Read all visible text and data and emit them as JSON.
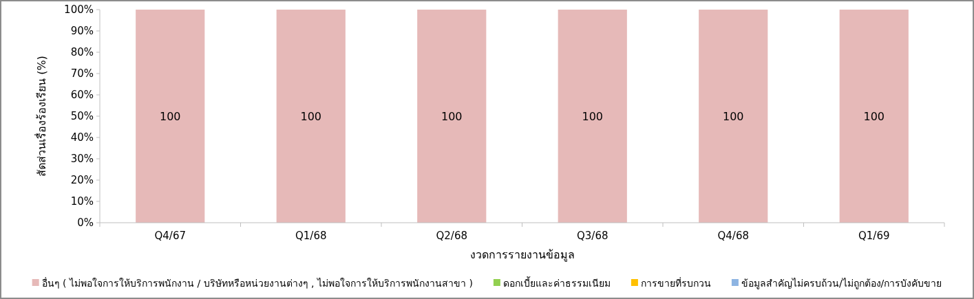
{
  "chart_data": {
    "type": "bar",
    "stacked": true,
    "xlabel": "งวดการรายงานข้อมูล",
    "ylabel": "สัดส่วนเรื่องร้องเรียน (%)",
    "categories": [
      "Q4/67",
      "Q1/68",
      "Q2/68",
      "Q3/68",
      "Q4/68",
      "Q1/69"
    ],
    "ylim": [
      0,
      100
    ],
    "yticks": [
      {
        "value": 0,
        "label": "0%"
      },
      {
        "value": 10,
        "label": "10%"
      },
      {
        "value": 20,
        "label": "20%"
      },
      {
        "value": 30,
        "label": "30%"
      },
      {
        "value": 40,
        "label": "40%"
      },
      {
        "value": 50,
        "label": "50%"
      },
      {
        "value": 60,
        "label": "60%"
      },
      {
        "value": 70,
        "label": "70%"
      },
      {
        "value": 80,
        "label": "80%"
      },
      {
        "value": 90,
        "label": "90%"
      },
      {
        "value": 100,
        "label": "100%"
      }
    ],
    "legend": "bottom",
    "series": [
      {
        "name": "อื่นๆ ( ไม่พอใจการให้บริการพนักงาน / บริษัทหรือหน่วยงานต่างๆ , ไม่พอใจการให้บริการพนักงานสาขา )",
        "color": "#e6b9b8",
        "values": [
          100,
          100,
          100,
          100,
          100,
          100
        ],
        "value_labels": [
          "100",
          "100",
          "100",
          "100",
          "100",
          "100"
        ]
      },
      {
        "name": "ดอกเบี้ยและค่าธรรมเนียม",
        "color": "#92d050",
        "values": [
          0,
          0,
          0,
          0,
          0,
          0
        ]
      },
      {
        "name": "การขายที่รบกวน",
        "color": "#ffc000",
        "values": [
          0,
          0,
          0,
          0,
          0,
          0
        ]
      },
      {
        "name": "ข้อมูลสำคัญไม่ครบถ้วน/ไม่ถูกต้อง/การบังคับขาย",
        "color": "#8db4e2",
        "values": [
          0,
          0,
          0,
          0,
          0,
          0
        ]
      }
    ]
  }
}
